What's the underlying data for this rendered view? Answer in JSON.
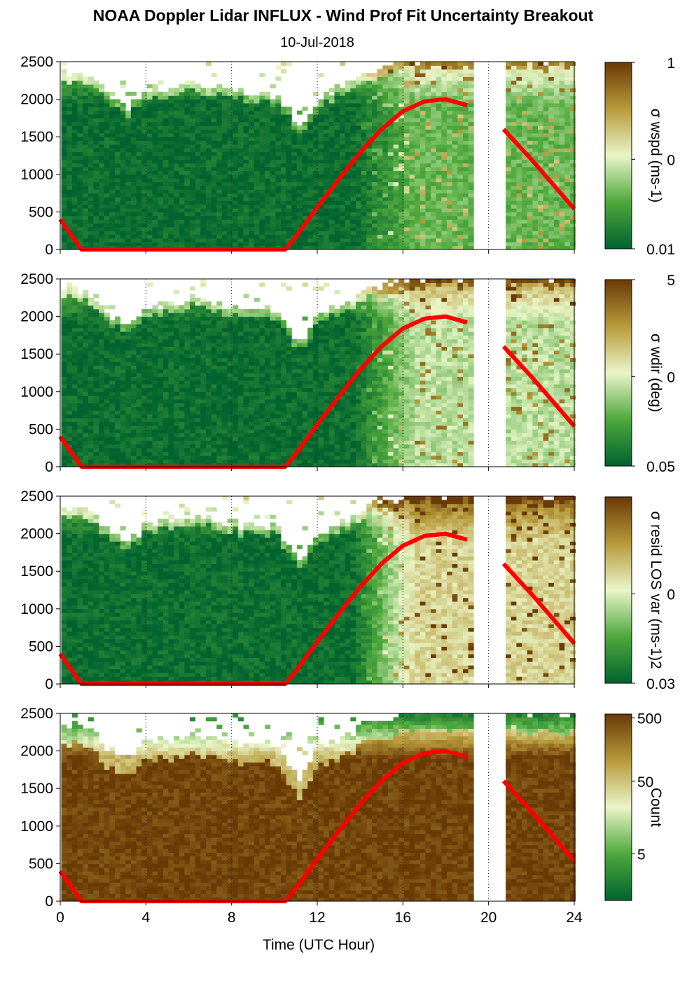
{
  "figure": {
    "title": "NOAA Doppler Lidar INFLUX - Wind Prof Fit Uncertainty Breakout",
    "subtitle": "10-Jul-2018",
    "xlabel": "Time (UTC Hour)"
  },
  "colors": {
    "dark_green": "#00632f",
    "mid_green": "#4ea83c",
    "pale": "#e9f5c8",
    "tan": "#b79a3a",
    "dark_brown": "#6a3a06",
    "overlay_red": "#ff0000"
  },
  "chart_data": [
    {
      "type": "heatmap",
      "panel": "wspd-uncertainty",
      "x_range": [
        0,
        24
      ],
      "x_ticks": [
        0,
        4,
        8,
        12,
        16,
        20,
        24
      ],
      "y_range": [
        0,
        2500
      ],
      "y_ticks": [
        0,
        500,
        1000,
        1500,
        2000,
        2500
      ],
      "grid": "dotted vertical at 4, 8, 12, 16, 20, 24",
      "data_gap_hours": [
        19.5,
        20.7
      ],
      "colorbar": {
        "title": "σ wspd (ms-1)",
        "labels": [
          "1",
          "0",
          "0.01"
        ],
        "scale": "log"
      },
      "cloud_top_profile": {
        "x": [
          0,
          1,
          2,
          3,
          4,
          6,
          8,
          10,
          11,
          12,
          14,
          16,
          19.5,
          21,
          24
        ],
        "y": [
          2300,
          2300,
          2050,
          1850,
          2100,
          2200,
          2100,
          2050,
          1600,
          2000,
          2300,
          2500,
          2500,
          2500,
          2500
        ]
      },
      "overlay_line": {
        "color": "#ff0000",
        "x": [
          0,
          1,
          2,
          4,
          6,
          8,
          10,
          10.5,
          11,
          12,
          13,
          14,
          15,
          16,
          17,
          18,
          19,
          20.7,
          22,
          24
        ],
        "y": [
          400,
          0,
          0,
          0,
          0,
          0,
          0,
          0,
          170,
          560,
          930,
          1290,
          1600,
          1840,
          1970,
          2000,
          1920,
          1600,
          1200,
          540
        ]
      }
    },
    {
      "type": "heatmap",
      "panel": "wdir-uncertainty",
      "x_range": [
        0,
        24
      ],
      "y_range": [
        0,
        2500
      ],
      "y_ticks": [
        0,
        500,
        1000,
        1500,
        2000,
        2500
      ],
      "colorbar": {
        "title": "σ wdir (deg)",
        "labels": [
          "5",
          "0",
          "0.05"
        ],
        "scale": "log"
      },
      "overlay_line": {
        "color": "#ff0000",
        "x": [
          0,
          1,
          2,
          4,
          6,
          8,
          10,
          10.5,
          11,
          12,
          13,
          14,
          15,
          16,
          17,
          18,
          19,
          20.7,
          22,
          24
        ],
        "y": [
          400,
          0,
          0,
          0,
          0,
          0,
          0,
          0,
          170,
          560,
          930,
          1290,
          1600,
          1840,
          1970,
          2000,
          1920,
          1600,
          1200,
          540
        ]
      }
    },
    {
      "type": "heatmap",
      "panel": "resid-los-var",
      "x_range": [
        0,
        24
      ],
      "y_range": [
        0,
        2500
      ],
      "y_ticks": [
        0,
        500,
        1000,
        1500,
        2000,
        2500
      ],
      "colorbar": {
        "title": "σ resid LOS var (ms-1)2",
        "labels": [
          "0",
          "0.03"
        ],
        "scale": "log"
      },
      "overlay_line": {
        "color": "#ff0000",
        "x": [
          0,
          1,
          2,
          4,
          6,
          8,
          10,
          10.5,
          11,
          12,
          13,
          14,
          15,
          16,
          17,
          18,
          19,
          20.7,
          22,
          24
        ],
        "y": [
          400,
          0,
          0,
          0,
          0,
          0,
          0,
          0,
          170,
          560,
          930,
          1290,
          1600,
          1840,
          1970,
          2000,
          1920,
          1600,
          1200,
          540
        ]
      }
    },
    {
      "type": "heatmap",
      "panel": "count",
      "x_range": [
        0,
        24
      ],
      "y_range": [
        0,
        2500
      ],
      "y_ticks": [
        0,
        500,
        1000,
        1500,
        2000,
        2500
      ],
      "colorbar": {
        "title": "Count",
        "labels": [
          "500",
          "50",
          "5"
        ],
        "scale": "log"
      },
      "overlay_line": {
        "color": "#ff0000",
        "x": [
          0,
          1,
          2,
          4,
          6,
          8,
          10,
          10.5,
          11,
          12,
          13,
          14,
          15,
          16,
          17,
          18,
          19,
          20.7,
          22,
          24
        ],
        "y": [
          400,
          0,
          0,
          0,
          0,
          0,
          0,
          0,
          170,
          560,
          930,
          1290,
          1600,
          1840,
          1970,
          2000,
          1920,
          1600,
          1200,
          540
        ]
      }
    }
  ]
}
